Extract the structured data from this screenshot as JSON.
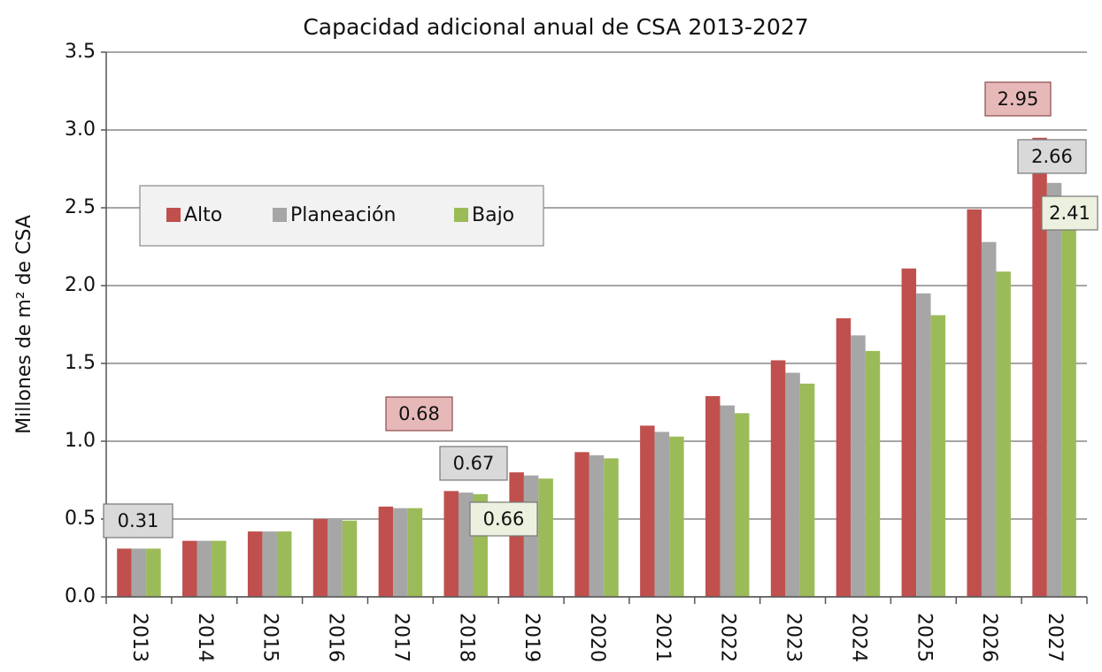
{
  "chart_data": {
    "type": "bar",
    "title": "Capacidad adicional anual de CSA 2013-2027",
    "y_label": "Millones de m² de CSA",
    "categories": [
      "2013",
      "2014",
      "2015",
      "2016",
      "2017",
      "2018",
      "2019",
      "2020",
      "2021",
      "2022",
      "2023",
      "2024",
      "2025",
      "2026",
      "2027"
    ],
    "series": [
      {
        "name": "Alto",
        "color": "#c0504d",
        "values": [
          0.31,
          0.36,
          0.42,
          0.5,
          0.58,
          0.68,
          0.8,
          0.93,
          1.1,
          1.29,
          1.52,
          1.79,
          2.11,
          2.49,
          2.95
        ]
      },
      {
        "name": "Planeación",
        "color": "#a6a6a6",
        "values": [
          0.31,
          0.36,
          0.42,
          0.5,
          0.57,
          0.67,
          0.78,
          0.91,
          1.06,
          1.23,
          1.44,
          1.68,
          1.95,
          2.28,
          2.66
        ]
      },
      {
        "name": "Bajo",
        "color": "#9bbb59",
        "values": [
          0.31,
          0.36,
          0.42,
          0.49,
          0.57,
          0.66,
          0.76,
          0.89,
          1.03,
          1.18,
          1.37,
          1.58,
          1.81,
          2.09,
          2.41
        ]
      }
    ],
    "ylim": [
      0,
      3.5
    ],
    "yticks": [
      {
        "value": 0,
        "label": "0.0"
      },
      0.5,
      {
        "value": 1,
        "label": "1.0"
      },
      1.5,
      {
        "value": 2,
        "label": "2.0"
      },
      2.5,
      {
        "value": 3,
        "label": "3.0"
      },
      3.5
    ],
    "grid": true,
    "legend": "upper left"
  }
}
